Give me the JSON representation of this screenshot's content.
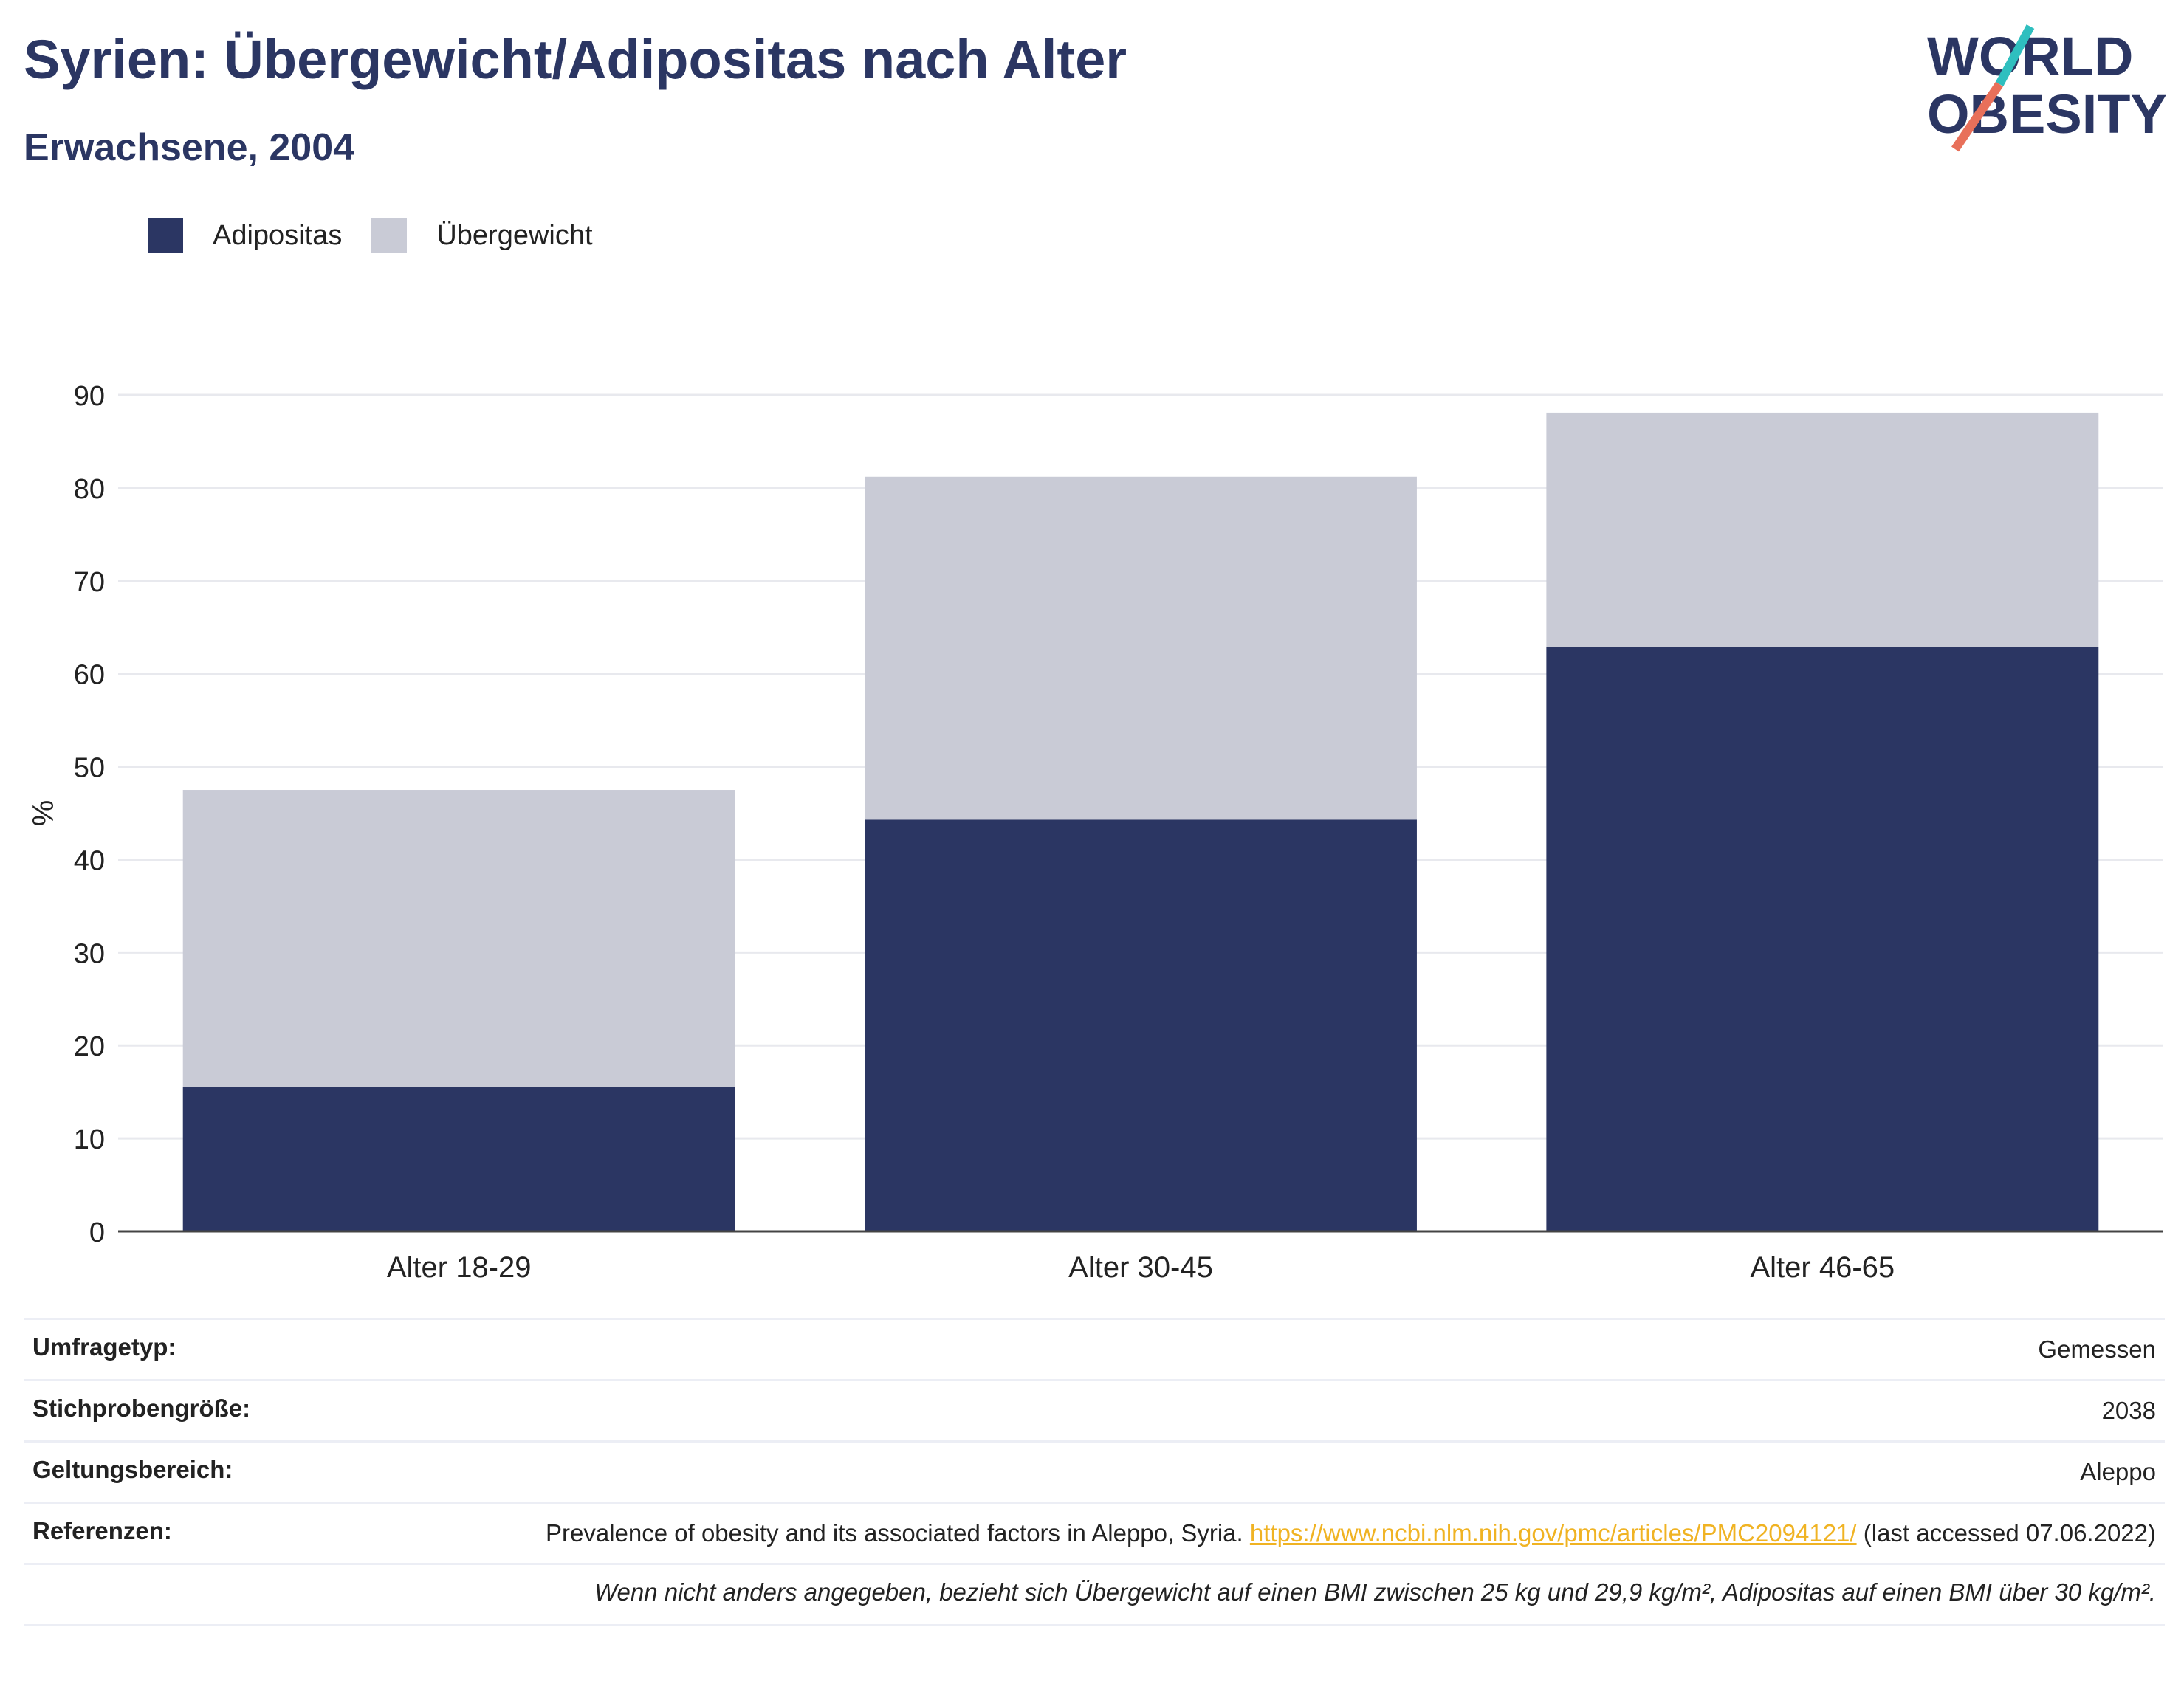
{
  "header": {
    "title": "Syrien: Übergewicht/Adipositas nach Alter",
    "subtitle": "Erwachsene, 2004"
  },
  "logo": {
    "line1": "WORLD",
    "line2": "OBESITY",
    "colors": {
      "teal": "#2fbfbf",
      "coral": "#e8705a",
      "navy": "#2b3663"
    }
  },
  "legend": {
    "items": [
      {
        "label": "Adipositas",
        "color": "#2b3663"
      },
      {
        "label": "Übergewicht",
        "color": "#c9cbd6"
      }
    ]
  },
  "chart_data": {
    "type": "bar",
    "stacked": true,
    "categories": [
      "Alter 18-29",
      "Alter 30-45",
      "Alter 46-65"
    ],
    "series": [
      {
        "name": "Adipositas",
        "values": [
          15.5,
          44.3,
          62.9
        ],
        "color": "#2b3663"
      },
      {
        "name": "Übergewicht",
        "values": [
          32.0,
          36.9,
          25.2
        ],
        "color": "#c9cbd6"
      }
    ],
    "ylabel": "%",
    "ylim": [
      0,
      90
    ],
    "yticks": [
      "0",
      "10",
      "20",
      "30",
      "40",
      "50",
      "60",
      "70",
      "80",
      "90"
    ],
    "grid": true,
    "legend_position": "top-left"
  },
  "info": {
    "survey_type": {
      "label": "Umfragetyp:",
      "value": "Gemessen"
    },
    "sample_size": {
      "label": "Stichprobengröße:",
      "value": "2038"
    },
    "scope": {
      "label": "Geltungsbereich:",
      "value": "Aleppo"
    },
    "references": {
      "label": "Referenzen:",
      "text": "Prevalence of obesity and its associated factors in Aleppo, Syria.",
      "link": "https://www.ncbi.nlm.nih.gov/pmc/articles/PMC2094121/",
      "suffix": "(last accessed 07.06.2022)"
    },
    "footnote": "Wenn nicht anders angegeben, bezieht sich Übergewicht auf einen BMI zwischen 25 kg und 29,9 kg/m², Adipositas auf einen BMI über 30 kg/m²."
  }
}
